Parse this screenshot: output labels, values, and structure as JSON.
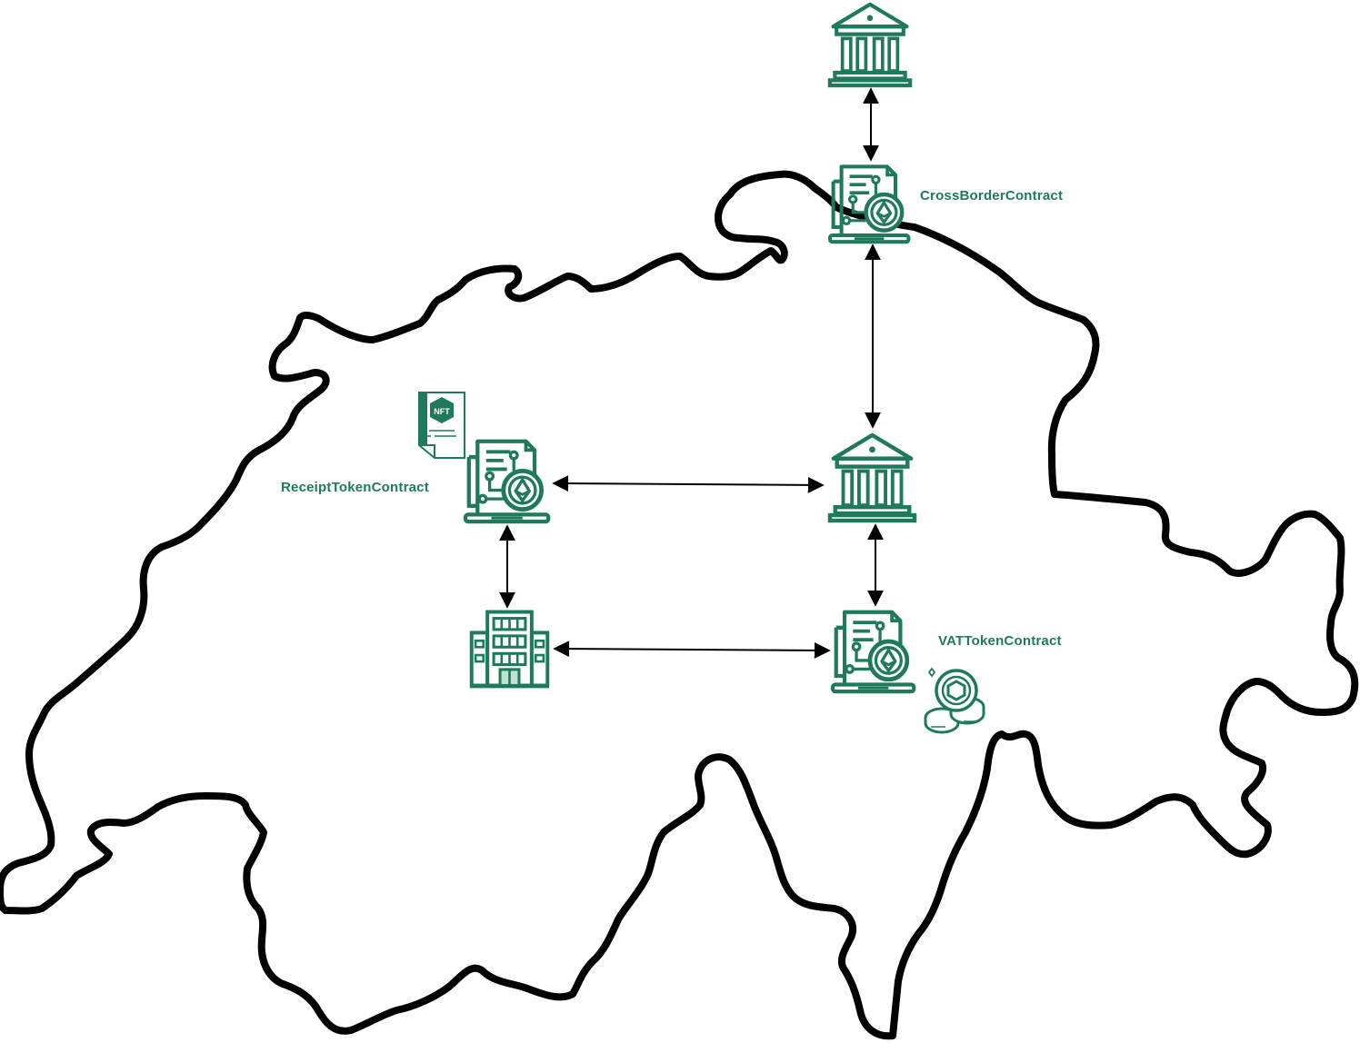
{
  "colors": {
    "accent": "#1f7a5c",
    "outline": "#000000",
    "background": "#ffffff"
  },
  "labels": {
    "cross_border": "CrossBorderContract",
    "receipt_token": "ReceiptTokenContract",
    "vat_token": "VATTokenContract",
    "nft_badge": "NFT"
  },
  "nodes": [
    {
      "id": "central-bank",
      "icon": "bank-icon"
    },
    {
      "id": "cross-border-contract",
      "icon": "smart-contract-icon"
    },
    {
      "id": "domestic-bank",
      "icon": "bank-icon"
    },
    {
      "id": "receipt-token-contract",
      "icon": "smart-contract-icon"
    },
    {
      "id": "nft-document",
      "icon": "nft-document-icon"
    },
    {
      "id": "company",
      "icon": "office-building-icon"
    },
    {
      "id": "vat-token-contract",
      "icon": "smart-contract-icon"
    },
    {
      "id": "token-coins",
      "icon": "coin-stack-icon"
    }
  ],
  "edges": [
    {
      "from": "central-bank",
      "to": "cross-border-contract",
      "direction": "both"
    },
    {
      "from": "cross-border-contract",
      "to": "domestic-bank",
      "direction": "both"
    },
    {
      "from": "receipt-token-contract",
      "to": "domestic-bank",
      "direction": "both"
    },
    {
      "from": "domestic-bank",
      "to": "vat-token-contract",
      "direction": "both"
    },
    {
      "from": "receipt-token-contract",
      "to": "company",
      "direction": "both"
    },
    {
      "from": "company",
      "to": "vat-token-contract",
      "direction": "both"
    }
  ],
  "map": {
    "region": "switzerland-outline"
  }
}
